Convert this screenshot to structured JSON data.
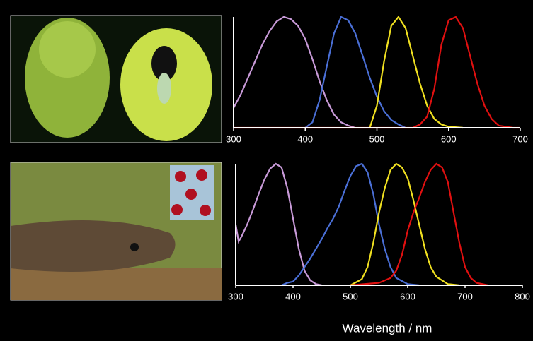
{
  "chart_data": [
    {
      "type": "line",
      "xlim": [
        300,
        700
      ],
      "xticks": [
        300,
        400,
        500,
        600,
        700
      ],
      "ylim": [
        0,
        1
      ],
      "series": [
        {
          "color": "#c89ad8",
          "x": [
            300,
            310,
            320,
            330,
            340,
            350,
            360,
            370,
            380,
            390,
            400,
            410,
            420,
            430,
            440,
            450,
            460,
            470
          ],
          "values": [
            0.18,
            0.3,
            0.45,
            0.6,
            0.75,
            0.87,
            0.96,
            1.0,
            0.98,
            0.92,
            0.8,
            0.62,
            0.42,
            0.25,
            0.12,
            0.05,
            0.02,
            0
          ]
        },
        {
          "color": "#4a6fd6",
          "x": [
            400,
            410,
            420,
            430,
            440,
            450,
            460,
            470,
            480,
            490,
            500,
            510,
            520,
            530,
            540
          ],
          "values": [
            0,
            0.05,
            0.25,
            0.55,
            0.85,
            1.0,
            0.97,
            0.85,
            0.65,
            0.45,
            0.28,
            0.15,
            0.07,
            0.03,
            0
          ]
        },
        {
          "color": "#f0e020",
          "x": [
            490,
            500,
            510,
            520,
            530,
            540,
            550,
            560,
            570,
            580,
            590,
            600,
            620
          ],
          "values": [
            0,
            0.2,
            0.6,
            0.92,
            1.0,
            0.9,
            0.65,
            0.4,
            0.2,
            0.08,
            0.03,
            0.01,
            0
          ]
        },
        {
          "color": "#e01010",
          "x": [
            300,
            550,
            560,
            570,
            580,
            590,
            600,
            610,
            620,
            630,
            640,
            650,
            660,
            670,
            690,
            700
          ],
          "values": [
            0,
            0,
            0.03,
            0.1,
            0.35,
            0.75,
            0.97,
            1.0,
            0.9,
            0.65,
            0.4,
            0.2,
            0.08,
            0.02,
            0,
            0
          ]
        }
      ]
    },
    {
      "type": "line",
      "xlim": [
        300,
        800
      ],
      "xticks": [
        300,
        400,
        500,
        600,
        700,
        800
      ],
      "ylim": [
        0,
        1
      ],
      "xlabel": "Wavelength / nm",
      "series": [
        {
          "color": "#c89ad8",
          "x": [
            300,
            305,
            310,
            320,
            330,
            340,
            350,
            360,
            370,
            380,
            390,
            400,
            410,
            420,
            430,
            440,
            450
          ],
          "values": [
            0.5,
            0.36,
            0.4,
            0.5,
            0.62,
            0.75,
            0.87,
            0.96,
            1.0,
            0.97,
            0.8,
            0.55,
            0.3,
            0.12,
            0.04,
            0.01,
            0
          ]
        },
        {
          "color": "#4a6fd6",
          "x": [
            380,
            390,
            400,
            410,
            420,
            430,
            440,
            450,
            460,
            470,
            480,
            490,
            500,
            510,
            520,
            530,
            540,
            550,
            560,
            570,
            580,
            600,
            620
          ],
          "values": [
            0,
            0.02,
            0.03,
            0.08,
            0.15,
            0.22,
            0.3,
            0.38,
            0.47,
            0.55,
            0.65,
            0.78,
            0.9,
            0.98,
            1.0,
            0.93,
            0.75,
            0.5,
            0.3,
            0.15,
            0.06,
            0.01,
            0
          ]
        },
        {
          "color": "#f0e020",
          "x": [
            500,
            520,
            530,
            540,
            550,
            560,
            570,
            580,
            590,
            600,
            610,
            620,
            630,
            640,
            650,
            670,
            690
          ],
          "values": [
            0,
            0.05,
            0.15,
            0.35,
            0.6,
            0.8,
            0.95,
            1.0,
            0.97,
            0.88,
            0.7,
            0.5,
            0.3,
            0.15,
            0.07,
            0.01,
            0
          ]
        },
        {
          "color": "#e01010",
          "x": [
            500,
            550,
            570,
            580,
            590,
            600,
            610,
            620,
            630,
            640,
            650,
            660,
            670,
            680,
            690,
            700,
            710,
            720,
            740
          ],
          "values": [
            0,
            0.02,
            0.06,
            0.12,
            0.25,
            0.45,
            0.6,
            0.72,
            0.85,
            0.95,
            1.0,
            0.97,
            0.85,
            0.6,
            0.35,
            0.15,
            0.06,
            0.02,
            0
          ]
        }
      ]
    }
  ]
}
